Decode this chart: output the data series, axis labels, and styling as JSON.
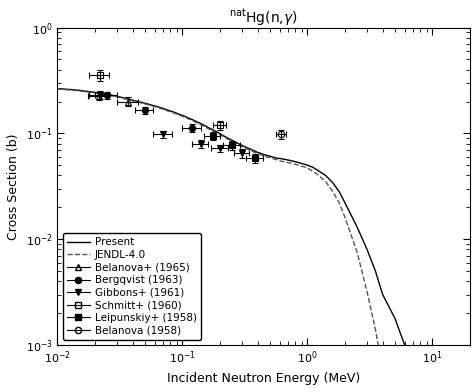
{
  "title": "$^{\\mathrm{nat}}$Hg(n,$\\gamma$)",
  "xlabel": "Incident Neutron Energy (MeV)",
  "ylabel": "Cross Section (b)",
  "xlim": [
    0.01,
    20
  ],
  "ylim": [
    0.001,
    1
  ],
  "background_color": "#ffffff",
  "present_line": {
    "x": [
      0.01,
      0.011,
      0.012,
      0.013,
      0.014,
      0.015,
      0.016,
      0.017,
      0.018,
      0.019,
      0.02,
      0.022,
      0.025,
      0.028,
      0.03,
      0.033,
      0.036,
      0.04,
      0.045,
      0.05,
      0.055,
      0.06,
      0.065,
      0.07,
      0.075,
      0.08,
      0.085,
      0.09,
      0.095,
      0.1,
      0.11,
      0.12,
      0.13,
      0.14,
      0.15,
      0.16,
      0.17,
      0.18,
      0.19,
      0.2,
      0.22,
      0.25,
      0.28,
      0.3,
      0.33,
      0.35,
      0.38,
      0.4,
      0.42,
      0.45,
      0.47,
      0.5,
      0.52,
      0.55,
      0.58,
      0.6,
      0.65,
      0.7,
      0.75,
      0.8,
      0.85,
      0.9,
      0.95,
      1.0,
      1.1,
      1.2,
      1.4,
      1.6,
      1.8,
      2.0,
      2.5,
      3.0,
      3.5,
      4.0,
      5.0,
      6.0,
      7.0,
      8.0,
      9.0,
      10.0,
      12.0,
      15.0,
      20.0
    ],
    "y": [
      0.265,
      0.263,
      0.261,
      0.259,
      0.257,
      0.255,
      0.252,
      0.25,
      0.248,
      0.246,
      0.244,
      0.24,
      0.234,
      0.228,
      0.224,
      0.218,
      0.213,
      0.206,
      0.199,
      0.193,
      0.187,
      0.182,
      0.177,
      0.172,
      0.167,
      0.163,
      0.159,
      0.155,
      0.151,
      0.148,
      0.141,
      0.135,
      0.129,
      0.124,
      0.119,
      0.114,
      0.11,
      0.106,
      0.103,
      0.099,
      0.093,
      0.086,
      0.08,
      0.077,
      0.073,
      0.071,
      0.068,
      0.066,
      0.065,
      0.063,
      0.062,
      0.061,
      0.06,
      0.059,
      0.058,
      0.058,
      0.057,
      0.056,
      0.055,
      0.054,
      0.053,
      0.052,
      0.051,
      0.05,
      0.048,
      0.045,
      0.04,
      0.034,
      0.028,
      0.022,
      0.013,
      0.008,
      0.005,
      0.003,
      0.0018,
      0.001,
      0.00065,
      0.0004,
      0.00028,
      0.0002,
      0.00012,
      7e-05,
      3e-05
    ],
    "color": "#000000",
    "linewidth": 1.0
  },
  "jendl_line": {
    "x": [
      0.01,
      0.011,
      0.012,
      0.013,
      0.014,
      0.015,
      0.016,
      0.017,
      0.018,
      0.019,
      0.02,
      0.022,
      0.025,
      0.028,
      0.03,
      0.033,
      0.036,
      0.04,
      0.045,
      0.05,
      0.055,
      0.06,
      0.065,
      0.07,
      0.075,
      0.08,
      0.085,
      0.09,
      0.095,
      0.1,
      0.11,
      0.12,
      0.13,
      0.14,
      0.15,
      0.16,
      0.17,
      0.18,
      0.19,
      0.2,
      0.22,
      0.25,
      0.28,
      0.3,
      0.33,
      0.35,
      0.38,
      0.4,
      0.42,
      0.45,
      0.47,
      0.5,
      0.52,
      0.55,
      0.58,
      0.6,
      0.65,
      0.7,
      0.75,
      0.8,
      0.85,
      0.9,
      0.95,
      1.0,
      1.1,
      1.2,
      1.4,
      1.6,
      1.8,
      2.0,
      2.5,
      3.0,
      3.5,
      4.0,
      4.5,
      5.0,
      5.5,
      6.0,
      7.0,
      8.0,
      9.0,
      10.0,
      11.0
    ],
    "y": [
      0.262,
      0.26,
      0.258,
      0.256,
      0.254,
      0.252,
      0.249,
      0.247,
      0.245,
      0.243,
      0.241,
      0.237,
      0.231,
      0.225,
      0.221,
      0.215,
      0.21,
      0.203,
      0.196,
      0.19,
      0.184,
      0.179,
      0.174,
      0.169,
      0.164,
      0.16,
      0.156,
      0.152,
      0.148,
      0.145,
      0.138,
      0.132,
      0.126,
      0.121,
      0.116,
      0.111,
      0.107,
      0.103,
      0.1,
      0.097,
      0.091,
      0.084,
      0.078,
      0.075,
      0.071,
      0.069,
      0.066,
      0.064,
      0.063,
      0.061,
      0.06,
      0.059,
      0.058,
      0.057,
      0.056,
      0.055,
      0.054,
      0.053,
      0.052,
      0.051,
      0.05,
      0.049,
      0.048,
      0.047,
      0.044,
      0.041,
      0.035,
      0.028,
      0.022,
      0.016,
      0.0075,
      0.0032,
      0.0014,
      0.0006,
      0.00025,
      0.0001,
      4.5e-05,
      2e-05,
      8e-06,
      4e-06,
      2e-06,
      1.2e-06,
      8e-07
    ],
    "color": "#555555",
    "linewidth": 1.0,
    "linestyle": "--"
  },
  "datasets": [
    {
      "name": "Belanova+ (1965)",
      "marker": "^",
      "filled": false,
      "color": "#000000",
      "x": [
        0.0215,
        0.037
      ],
      "y": [
        0.225,
        0.2
      ],
      "xerr_lo": [
        0.004,
        0.007
      ],
      "xerr_hi": [
        0.004,
        0.007
      ],
      "yerr_lo": [
        0.02,
        0.02
      ],
      "yerr_hi": [
        0.02,
        0.02
      ]
    },
    {
      "name": "Bergqvist (1963)",
      "marker": "o",
      "filled": true,
      "color": "#000000",
      "x": [
        0.025,
        0.05,
        0.12
      ],
      "y": [
        0.228,
        0.165,
        0.113
      ],
      "xerr_lo": [
        0.005,
        0.008,
        0.02
      ],
      "xerr_hi": [
        0.005,
        0.008,
        0.02
      ],
      "yerr_lo": [
        0.018,
        0.012,
        0.01
      ],
      "yerr_hi": [
        0.018,
        0.012,
        0.01
      ]
    },
    {
      "name": "Gibbons+ (1961)",
      "marker": "v",
      "filled": true,
      "color": "#000000",
      "x": [
        0.022,
        0.07,
        0.14,
        0.2,
        0.3
      ],
      "y": [
        0.23,
        0.098,
        0.08,
        0.072,
        0.065
      ],
      "xerr_lo": [
        0.004,
        0.012,
        0.02,
        0.03,
        0.04
      ],
      "xerr_hi": [
        0.004,
        0.012,
        0.02,
        0.03,
        0.04
      ],
      "yerr_lo": [
        0.02,
        0.008,
        0.007,
        0.006,
        0.006
      ],
      "yerr_hi": [
        0.02,
        0.008,
        0.007,
        0.006,
        0.006
      ]
    },
    {
      "name": "Schmitt+ (1960)",
      "marker": "s",
      "filled": false,
      "color": "#000000",
      "x": [
        0.022,
        0.2
      ],
      "y": [
        0.355,
        0.12
      ],
      "xerr_lo": [
        0.004,
        0.025
      ],
      "xerr_hi": [
        0.004,
        0.025
      ],
      "yerr_lo": [
        0.045,
        0.012
      ],
      "yerr_hi": [
        0.045,
        0.012
      ]
    },
    {
      "name": "Leipunskiy+ (1958)",
      "marker": "s",
      "filled": true,
      "color": "#000000",
      "x": [
        0.175,
        0.25,
        0.38
      ],
      "y": [
        0.095,
        0.077,
        0.058
      ],
      "xerr_lo": [
        0.025,
        0.04,
        0.06
      ],
      "xerr_hi": [
        0.025,
        0.04,
        0.06
      ],
      "yerr_lo": [
        0.009,
        0.007,
        0.006
      ],
      "yerr_hi": [
        0.009,
        0.007,
        0.006
      ]
    },
    {
      "name": "Belanova (1958)",
      "marker": "o",
      "filled": false,
      "color": "#000000",
      "x": [
        0.62
      ],
      "y": [
        0.098
      ],
      "xerr_lo": [
        0.06
      ],
      "xerr_hi": [
        0.06
      ],
      "yerr_lo": [
        0.009
      ],
      "yerr_hi": [
        0.009
      ]
    }
  ]
}
